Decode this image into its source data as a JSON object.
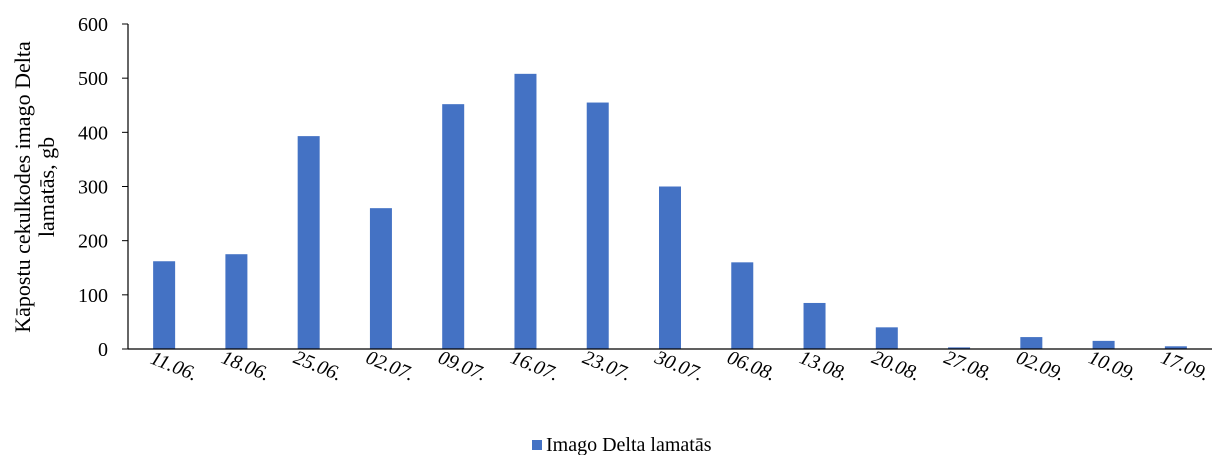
{
  "chart_data": {
    "type": "bar",
    "title": "",
    "xlabel": "",
    "ylabel_lines": [
      "Kāpostu cekulkodes imago Delta",
      "lamatās, gb"
    ],
    "ylim": [
      0,
      600
    ],
    "yticks": [
      "0",
      "100",
      "200",
      "300",
      "400",
      "500",
      "600"
    ],
    "categories": [
      "11.06.",
      "18.06.",
      "25.06.",
      "02.07.",
      "09.07.",
      "16.07.",
      "23.07.",
      "30.07.",
      "06.08.",
      "13.08.",
      "20.08.",
      "27.08.",
      "02.09.",
      "10.09.",
      "17.09."
    ],
    "series": [
      {
        "name": "Imago Delta lamatās",
        "color": "#4472C4",
        "values": [
          162,
          175,
          393,
          260,
          452,
          508,
          455,
          300,
          160,
          85,
          40,
          3,
          22,
          15,
          5
        ]
      }
    ],
    "grid": false,
    "legend_position": "bottom"
  }
}
